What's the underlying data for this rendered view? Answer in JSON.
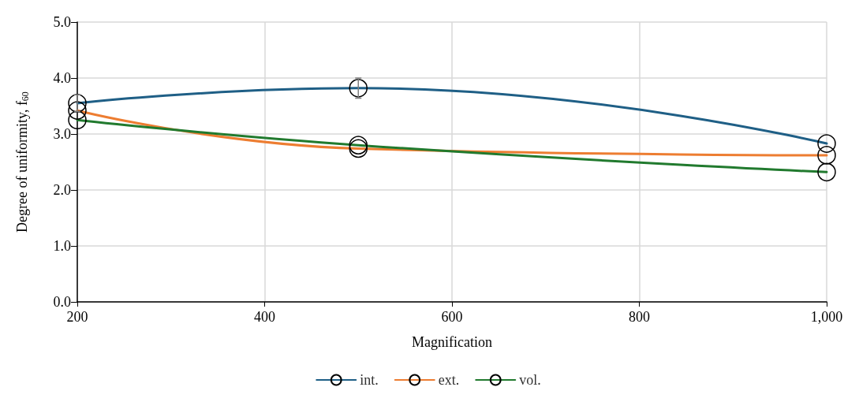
{
  "chart_data": {
    "type": "line",
    "xlabel": "Magnification",
    "ylabel": "Degree of uniformity, f$_{60}$",
    "x": [
      200,
      500,
      1000
    ],
    "series": [
      {
        "name": "int.",
        "color": "#1f5f86",
        "values": [
          3.55,
          3.82,
          2.83
        ],
        "errors": [
          0.15,
          0.18,
          null
        ]
      },
      {
        "name": "ext.",
        "color": "#ed7d31",
        "values": [
          3.42,
          2.74,
          2.62
        ]
      },
      {
        "name": "vol.",
        "color": "#217a2e",
        "values": [
          3.25,
          2.8,
          2.32
        ]
      }
    ],
    "xlim": [
      200,
      1000
    ],
    "xticks": [
      200,
      400,
      600,
      800,
      {
        "value": 1000,
        "label": "1,000"
      }
    ],
    "ylim": [
      0,
      5
    ],
    "yticks": [
      {
        "value": 0,
        "label": "0.0"
      },
      {
        "value": 1,
        "label": "1.0"
      },
      {
        "value": 2,
        "label": "2.0"
      },
      {
        "value": 3,
        "label": "3.0"
      },
      {
        "value": 4,
        "label": "4.0"
      },
      {
        "value": 5,
        "label": "5.0"
      }
    ],
    "grid": true,
    "legend": "bottom",
    "marker": "circle",
    "line_style": "solid"
  }
}
